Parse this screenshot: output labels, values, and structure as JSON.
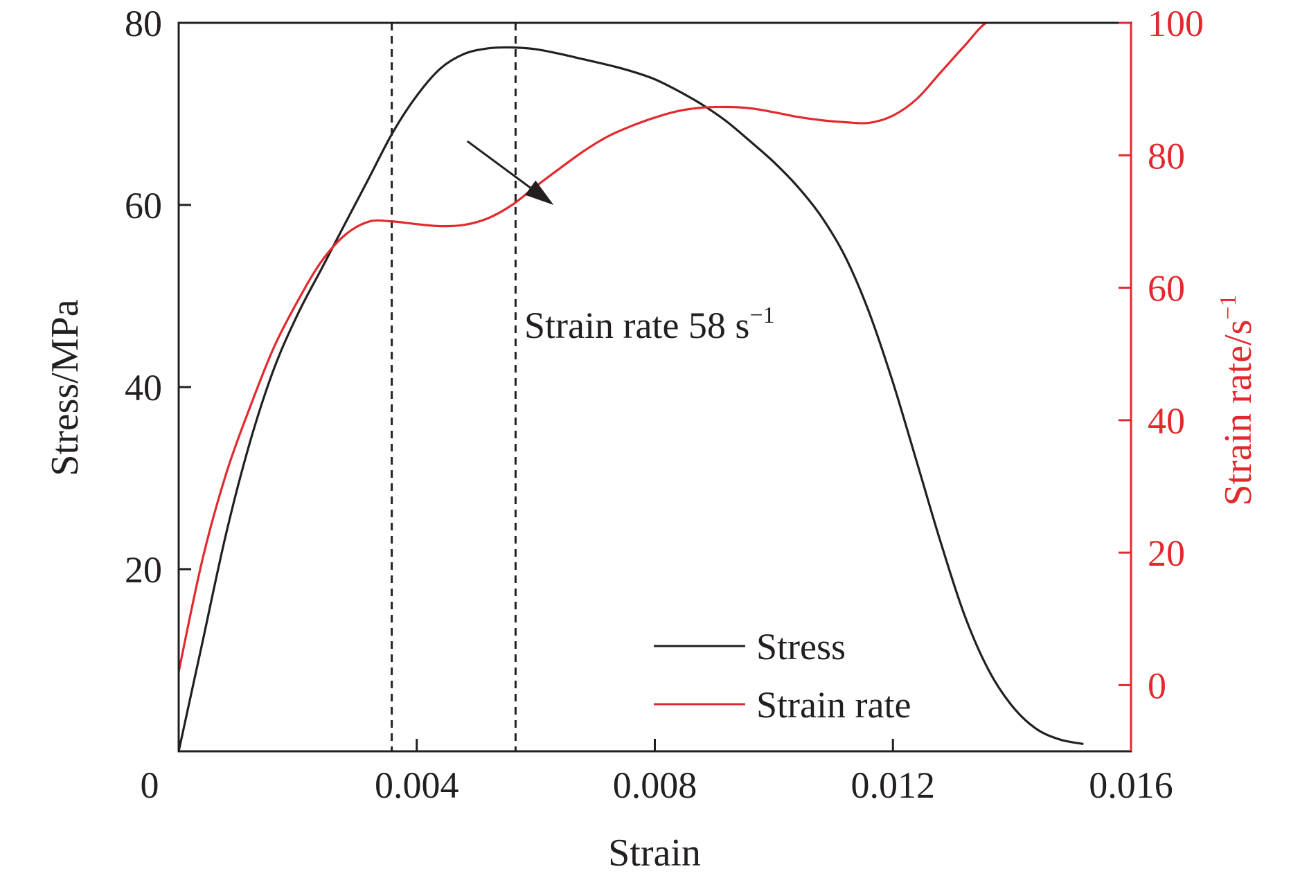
{
  "chart_data": {
    "type": "line",
    "xlabel": "Strain",
    "ylabel_left": "Stress/MPa",
    "ylabel_right": "Strain rate/s",
    "ylabel_right_sup": "−1",
    "xlim": [
      0,
      0.016
    ],
    "ylim_left": [
      0,
      80
    ],
    "ylim_right": [
      -10,
      100
    ],
    "x_ticks": [
      {
        "value": 0,
        "label": "0"
      },
      {
        "value": 0.004,
        "label": "0.004"
      },
      {
        "value": 0.008,
        "label": "0.008"
      },
      {
        "value": 0.012,
        "label": "0.012"
      },
      {
        "value": 0.016,
        "label": "0.016"
      }
    ],
    "y_left_ticks": [
      {
        "value": 20,
        "label": "20"
      },
      {
        "value": 40,
        "label": "40"
      },
      {
        "value": 60,
        "label": "60"
      },
      {
        "value": 80,
        "label": "80"
      }
    ],
    "y_right_ticks": [
      {
        "value": 0,
        "label": "0"
      },
      {
        "value": 20,
        "label": "20"
      },
      {
        "value": 40,
        "label": "40"
      },
      {
        "value": 60,
        "label": "60"
      },
      {
        "value": 80,
        "label": "80"
      },
      {
        "value": 100,
        "label": "100"
      }
    ],
    "colors": {
      "stress": "#231f20",
      "strain_rate": "#e2292e",
      "axis": "#231f20"
    },
    "grid": false,
    "legend_position": "bottom-right",
    "series": [
      {
        "name": "Stress",
        "axis": "left",
        "x": [
          0,
          0.0004,
          0.0008,
          0.0012,
          0.0016,
          0.002,
          0.0024,
          0.0028,
          0.0032,
          0.0036,
          0.004,
          0.0044,
          0.0048,
          0.0052,
          0.0056,
          0.006,
          0.0064,
          0.0068,
          0.0072,
          0.0076,
          0.008,
          0.0084,
          0.0088,
          0.0092,
          0.0096,
          0.01,
          0.0104,
          0.0108,
          0.0112,
          0.0116,
          0.012,
          0.0124,
          0.0128,
          0.0132,
          0.0136,
          0.014,
          0.0144,
          0.0148,
          0.0152
        ],
        "y": [
          0,
          12,
          24,
          34,
          42,
          48,
          53,
          58,
          63,
          68,
          72,
          75,
          76.6,
          77.2,
          77.3,
          77.1,
          76.6,
          76.0,
          75.4,
          74.7,
          73.8,
          72.5,
          71.0,
          69.2,
          67.0,
          64.7,
          62.0,
          58.7,
          54.3,
          48.2,
          40.5,
          31.8,
          23.0,
          15.0,
          9.0,
          5.0,
          2.5,
          1.3,
          0.8
        ]
      },
      {
        "name": "Strain rate",
        "axis": "right",
        "x": [
          0,
          0.0004,
          0.0008,
          0.0012,
          0.0016,
          0.002,
          0.0024,
          0.0028,
          0.0032,
          0.0036,
          0.004,
          0.0044,
          0.0048,
          0.0052,
          0.0056,
          0.006,
          0.0064,
          0.0068,
          0.0072,
          0.0076,
          0.008,
          0.0084,
          0.0088,
          0.0092,
          0.0096,
          0.01,
          0.0104,
          0.0108,
          0.0112,
          0.0116,
          0.012,
          0.0124,
          0.0128,
          0.0132,
          0.0136,
          0.014
        ],
        "y": [
          2,
          19,
          32,
          42,
          51,
          58,
          64,
          68,
          70,
          70,
          69.6,
          69.3,
          69.5,
          70.5,
          72.5,
          75.3,
          78.0,
          80.6,
          82.8,
          84.4,
          85.7,
          86.7,
          87.2,
          87.3,
          87.1,
          86.5,
          85.8,
          85.3,
          85.0,
          84.9,
          86.0,
          88.5,
          92.5,
          96.5,
          100.2,
          100.2
        ]
      }
    ],
    "reference_lines_x": [
      0.00358,
      0.00566
    ],
    "annotation": {
      "text": "Strain rate 58 s",
      "sup": "−1",
      "arrow_from": [
        0.00485,
        67
      ],
      "arrow_to": [
        0.0063,
        60
      ]
    },
    "legend": [
      {
        "label": "Stress",
        "series": 0
      },
      {
        "label": "Strain rate",
        "series": 1
      }
    ]
  }
}
